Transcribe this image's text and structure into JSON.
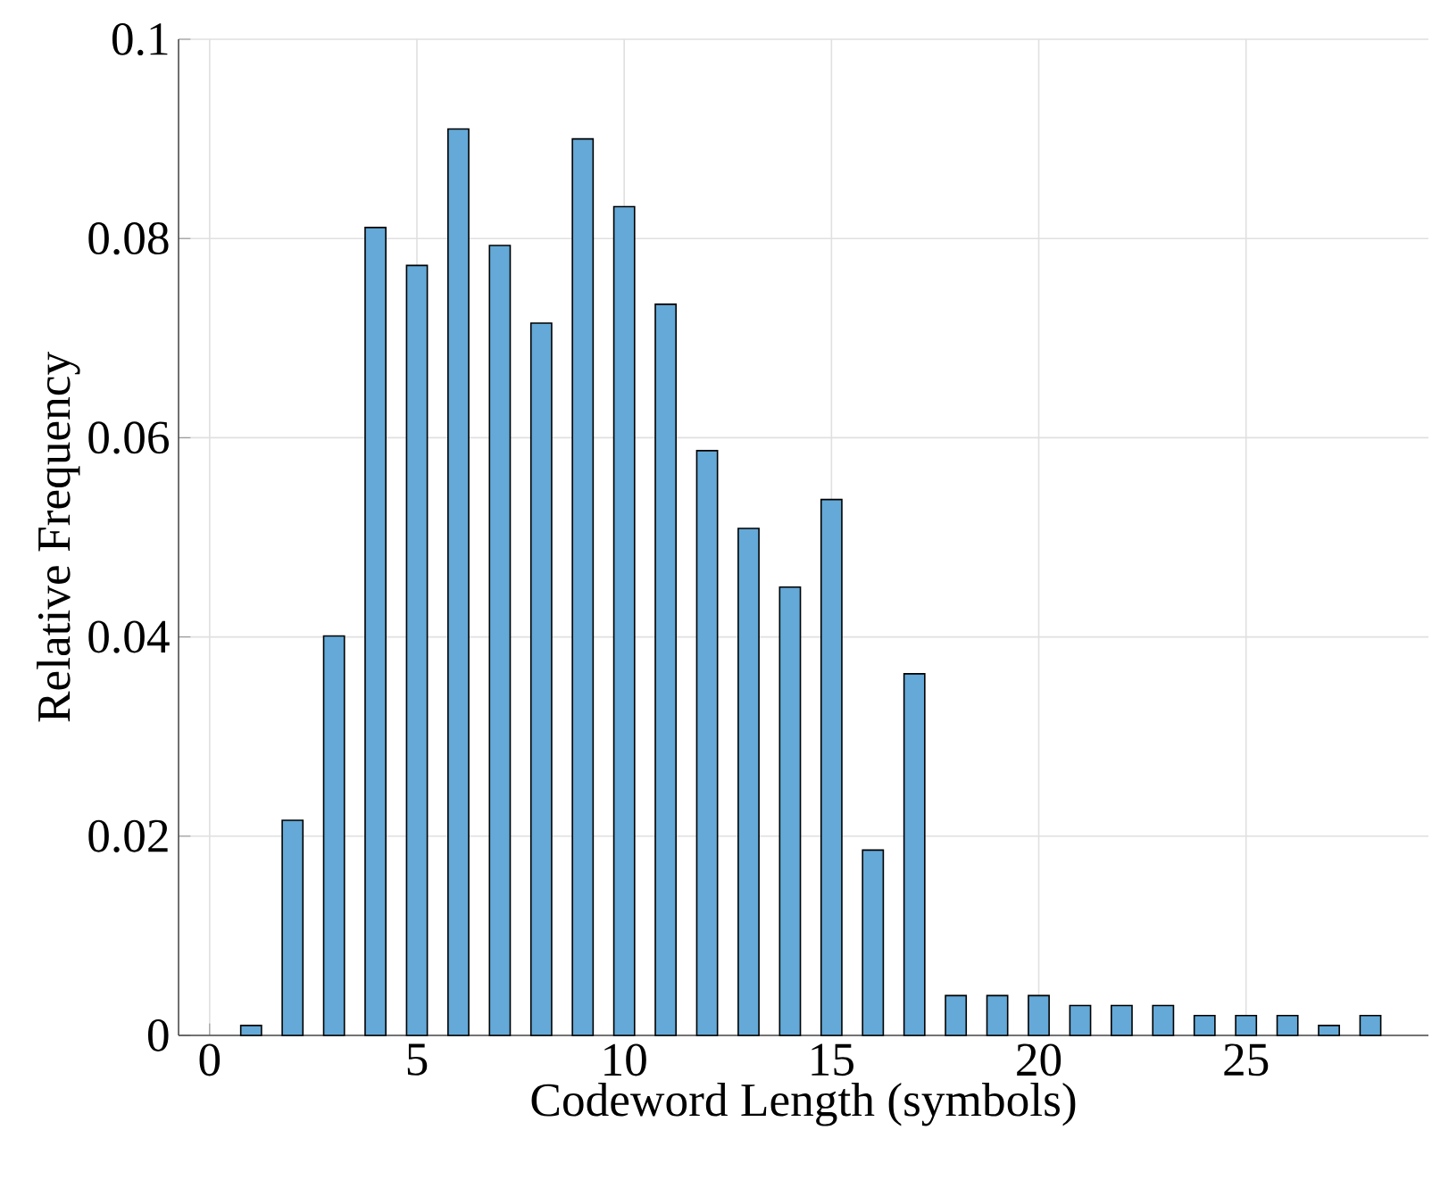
{
  "chart_data": {
    "type": "bar",
    "xlabel": "Codeword Length (symbols)",
    "ylabel": "Relative Frequency",
    "x": [
      1,
      2,
      3,
      4,
      5,
      6,
      7,
      8,
      9,
      10,
      11,
      12,
      13,
      14,
      15,
      16,
      17,
      18,
      19,
      20,
      21,
      22,
      23,
      24,
      25,
      26,
      27,
      28
    ],
    "values": [
      0.001,
      0.0216,
      0.0401,
      0.0811,
      0.0773,
      0.091,
      0.0793,
      0.0715,
      0.09,
      0.0832,
      0.0734,
      0.0587,
      0.0509,
      0.045,
      0.0538,
      0.0186,
      0.0363,
      0.004,
      0.004,
      0.004,
      0.003,
      0.003,
      0.003,
      0.002,
      0.002,
      0.002,
      0.001,
      0.002
    ],
    "color": "#64a9d7",
    "xlim": [
      -0.75,
      29.4
    ],
    "ylim": [
      0,
      0.1
    ],
    "xticks": [
      0,
      5,
      10,
      15,
      20,
      25
    ],
    "yticks": [
      0,
      0.02,
      0.04,
      0.06,
      0.08,
      0.1
    ],
    "grid": true
  }
}
